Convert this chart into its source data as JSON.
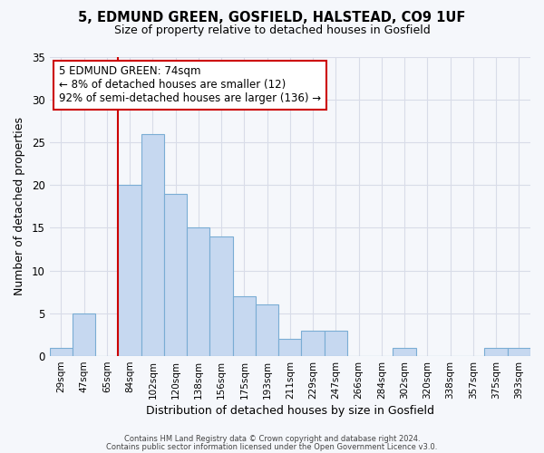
{
  "title1": "5, EDMUND GREEN, GOSFIELD, HALSTEAD, CO9 1UF",
  "title2": "Size of property relative to detached houses in Gosfield",
  "xlabel": "Distribution of detached houses by size in Gosfield",
  "ylabel": "Number of detached properties",
  "categories": [
    "29sqm",
    "47sqm",
    "65sqm",
    "84sqm",
    "102sqm",
    "120sqm",
    "138sqm",
    "156sqm",
    "175sqm",
    "193sqm",
    "211sqm",
    "229sqm",
    "247sqm",
    "266sqm",
    "284sqm",
    "302sqm",
    "320sqm",
    "338sqm",
    "357sqm",
    "375sqm",
    "393sqm"
  ],
  "values": [
    1,
    5,
    0,
    20,
    26,
    19,
    15,
    14,
    7,
    6,
    2,
    3,
    3,
    0,
    0,
    1,
    0,
    0,
    0,
    1,
    1
  ],
  "bar_color": "#c6d8f0",
  "bar_edge_color": "#7aadd4",
  "vline_x_index": 2,
  "vline_color": "#cc0000",
  "ylim": [
    0,
    35
  ],
  "yticks": [
    0,
    5,
    10,
    15,
    20,
    25,
    30,
    35
  ],
  "annotation_text": "5 EDMUND GREEN: 74sqm\n← 8% of detached houses are smaller (12)\n92% of semi-detached houses are larger (136) →",
  "annotation_box_color": "#ffffff",
  "annotation_box_edge": "#cc0000",
  "footer1": "Contains HM Land Registry data © Crown copyright and database right 2024.",
  "footer2": "Contains public sector information licensed under the Open Government Licence v3.0.",
  "background_color": "#f5f7fb",
  "plot_background": "#f5f7fb",
  "grid_color": "#d8dce8"
}
